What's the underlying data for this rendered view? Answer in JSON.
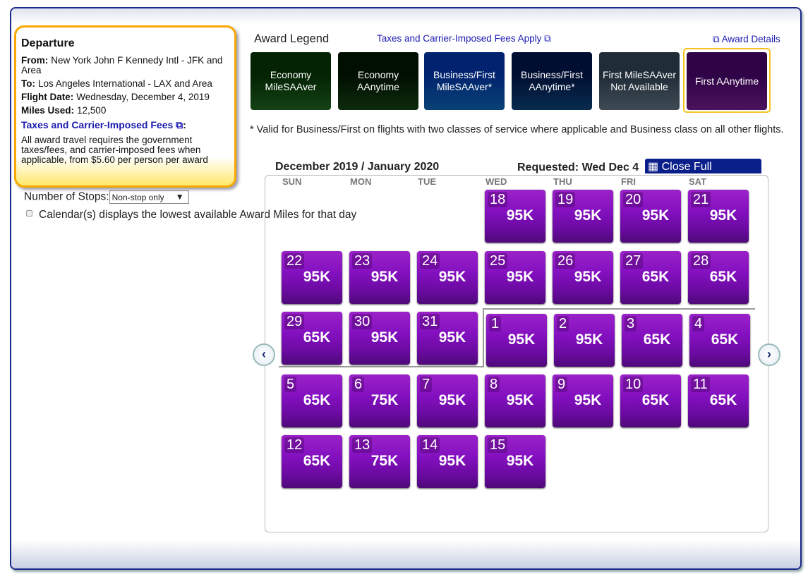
{
  "departure": {
    "title": "Departure",
    "from_label": "From:",
    "from": "New York John F Kennedy Intl - JFK and Area",
    "to_label": "To:",
    "to": "Los Angeles International - LAX and Area",
    "date_label": "Flight Date:",
    "date": "Wednesday, December 4, 2019",
    "miles_label": "Miles Used:",
    "miles": "12,500",
    "fees_link": "Taxes and Carrier-Imposed Fees",
    "fees_colon": ":",
    "note": "All award travel requires the government taxes/fees, and carrier-imposed fees when applicable, from $5.60 per person per award"
  },
  "stops": {
    "label": "Number of Stops:",
    "value": "Non-stop only",
    "arrow": "▼"
  },
  "calendar_note": "Calendar(s) displays the lowest available Award Miles for that day",
  "legend": {
    "title": "Award Legend",
    "tax_link": "Taxes and Carrier-Imposed Fees Apply",
    "award_details": "Award Details",
    "items": [
      {
        "label": "Economy MileSAAver",
        "color": "#1d5e1d"
      },
      {
        "label": "Economy AAnytime",
        "color": "#123d12"
      },
      {
        "label": "Business/First MileSAAver*",
        "color": "#0d5fa8"
      },
      {
        "label": "Business/First AAnytime*",
        "color": "#0b3e70"
      },
      {
        "label": "First MileSAAver Not Available",
        "color": "#5a6b78"
      },
      {
        "label": "First AAnytime",
        "color": "#6d1a86",
        "selected": true
      }
    ],
    "footnote": "* Valid for Business/First on flights with two classes of service where applicable and Business class on all other flights."
  },
  "calendar": {
    "title": "December 2019 / January 2020",
    "requested": "Requested: Wed Dec 4",
    "close_button": "Close Full Calendar",
    "days": [
      "SUN",
      "MON",
      "TUE",
      "WED",
      "THU",
      "FRI",
      "SAT"
    ],
    "weeks": [
      [
        null,
        null,
        null,
        {
          "d": "18",
          "m": "95K"
        },
        {
          "d": "19",
          "m": "95K"
        },
        {
          "d": "20",
          "m": "95K"
        },
        {
          "d": "21",
          "m": "95K"
        }
      ],
      [
        {
          "d": "22",
          "m": "95K"
        },
        {
          "d": "23",
          "m": "95K"
        },
        {
          "d": "24",
          "m": "95K"
        },
        {
          "d": "25",
          "m": "95K"
        },
        {
          "d": "26",
          "m": "95K"
        },
        {
          "d": "27",
          "m": "65K"
        },
        {
          "d": "28",
          "m": "65K"
        }
      ],
      [
        {
          "d": "29",
          "m": "65K"
        },
        {
          "d": "30",
          "m": "95K"
        },
        {
          "d": "31",
          "m": "95K"
        },
        {
          "d": "1",
          "m": "95K",
          "jan": true
        },
        {
          "d": "2",
          "m": "95K",
          "jan": true
        },
        {
          "d": "3",
          "m": "65K",
          "jan": true
        },
        {
          "d": "4",
          "m": "65K",
          "jan": true
        }
      ],
      [
        {
          "d": "5",
          "m": "65K"
        },
        {
          "d": "6",
          "m": "75K"
        },
        {
          "d": "7",
          "m": "95K"
        },
        {
          "d": "8",
          "m": "95K"
        },
        {
          "d": "9",
          "m": "95K"
        },
        {
          "d": "10",
          "m": "65K"
        },
        {
          "d": "11",
          "m": "65K"
        }
      ],
      [
        {
          "d": "12",
          "m": "65K"
        },
        {
          "d": "13",
          "m": "75K"
        },
        {
          "d": "14",
          "m": "95K"
        },
        {
          "d": "15",
          "m": "95K"
        },
        null,
        null,
        null
      ]
    ],
    "prev": "‹",
    "next": "›"
  }
}
